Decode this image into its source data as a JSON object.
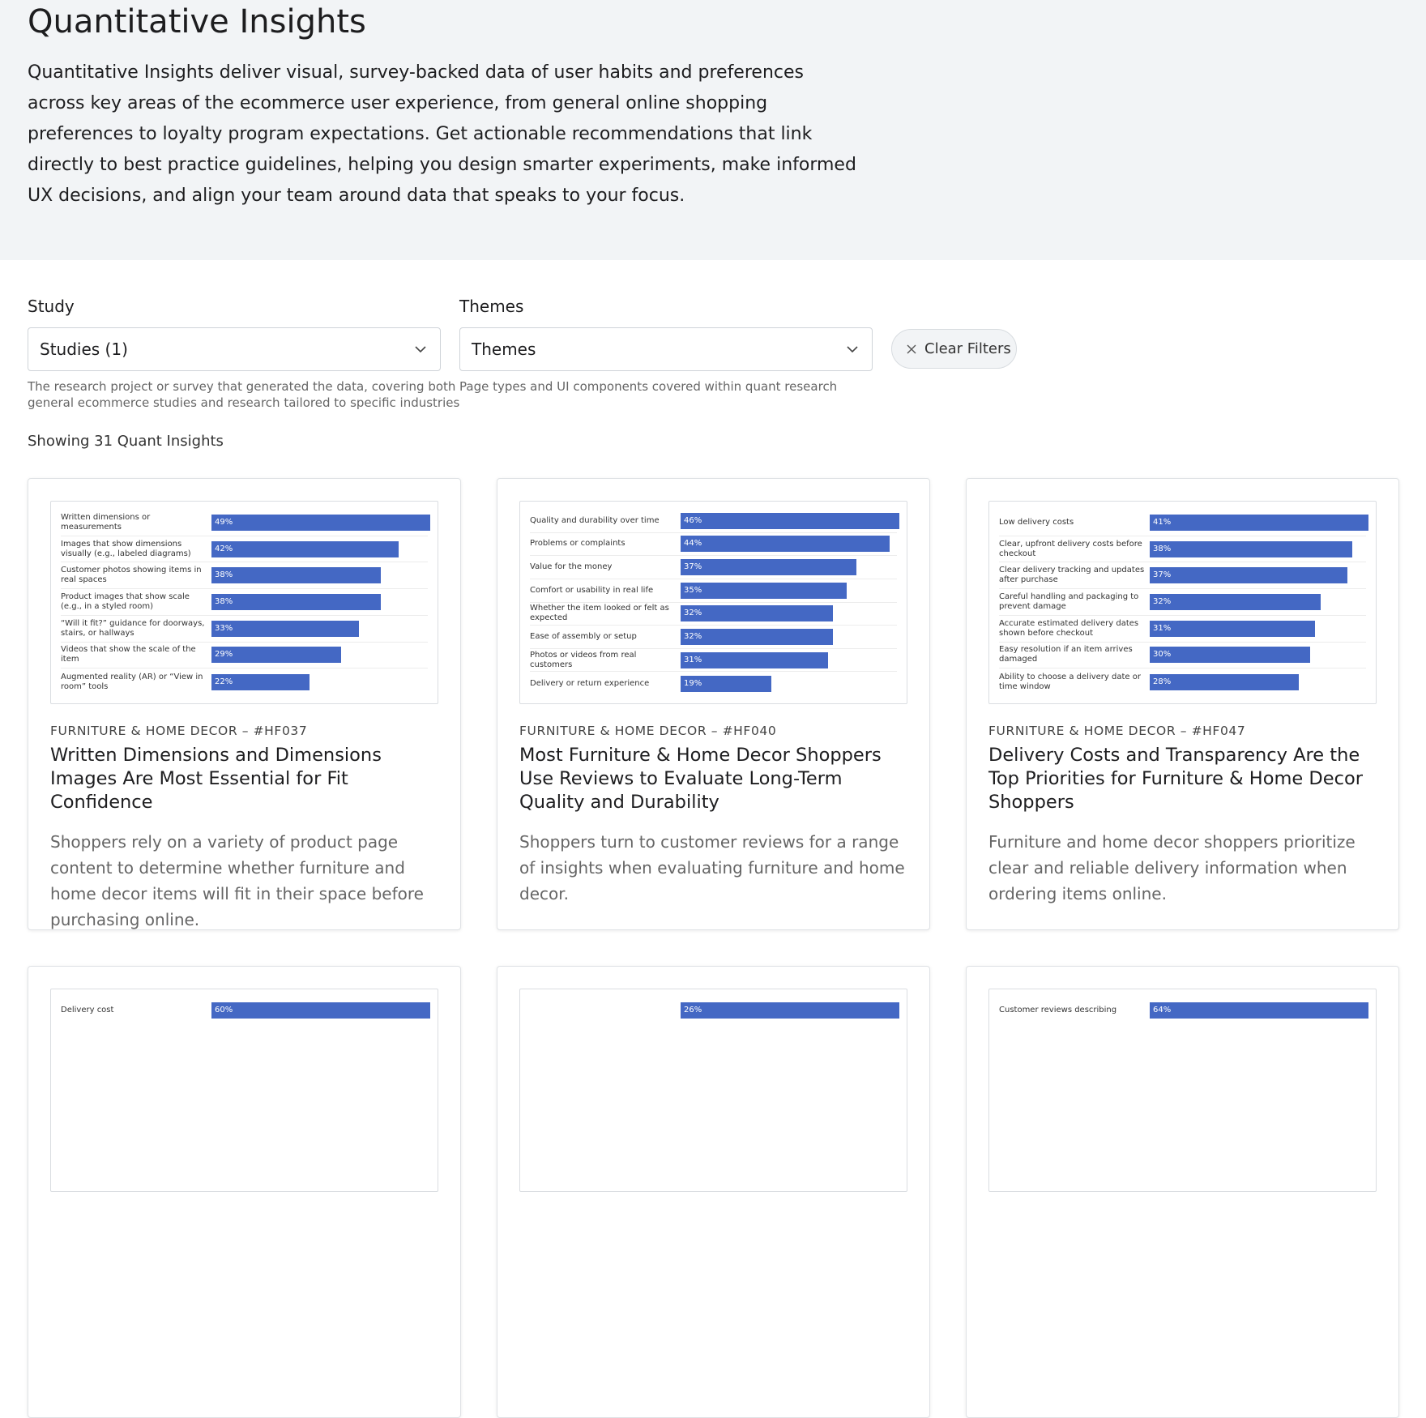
{
  "header": {
    "title": "Quantitative Insights",
    "description": "Quantitative Insights deliver visual, survey-backed data of user habits and preferences across key areas of the ecommerce user experience, from general online shopping preferences to loyalty program expectations. Get actionable recommendations that link directly to best practice guidelines, helping you design smarter experiments, make informed UX decisions, and align your team around data that speaks to your focus."
  },
  "filters": [
    {
      "label": "Study",
      "placeholder": "Studies (1)",
      "help": "The research project or survey that generated the data, covering both general ecommerce studies and research tailored to specific industries"
    },
    {
      "label": "Themes",
      "placeholder": "Themes",
      "help": "Page types and UI components covered within quant research"
    }
  ],
  "clear_filters": "Clear Filters",
  "results_count": "Showing 31 Quant Insights",
  "cards": [
    {
      "category": "FURNITURE & HOME DECOR – #HF037",
      "title": "Written Dimensions and Dimensions Images Are Most Essential for Fit Confidence",
      "description": "Shoppers rely on a variety of product page content to determine whether furniture and home decor items will fit in their space before purchasing online.",
      "chart_data": {
        "type": "bar",
        "orientation": "horizontal",
        "color": "#4468c4",
        "categories": [
          "Written dimensions or measurements",
          "Images that show dimensions visually (e.g., labeled diagrams)",
          "Customer photos showing items in real spaces",
          "Product images that show scale (e.g., in a styled room)",
          "“Will it fit?” guidance for doorways, stairs, or hallways",
          "Videos that show the scale of the item",
          "Augmented reality (AR) or “View in room” tools"
        ],
        "values": [
          49,
          42,
          38,
          38,
          33,
          29,
          22
        ],
        "value_labels": [
          "49%",
          "42%",
          "38%",
          "38%",
          "33%",
          "29%",
          "22%"
        ]
      }
    },
    {
      "category": "FURNITURE & HOME DECOR – #HF040",
      "title": "Most Furniture & Home Decor Shoppers Use Reviews to Evaluate Long-Term Quality and Durability",
      "description": "Shoppers turn to customer reviews for a range of insights when evaluating furniture and home decor.",
      "chart_data": {
        "type": "bar",
        "orientation": "horizontal",
        "color": "#4468c4",
        "categories": [
          "Quality and durability over time",
          "Problems or complaints",
          "Value for the money",
          "Comfort or usability in real life",
          "Whether the item looked or felt as expected",
          "Ease of assembly or setup",
          "Photos or videos from real customers",
          "Delivery or return experience"
        ],
        "values": [
          46,
          44,
          37,
          35,
          32,
          32,
          31,
          19
        ],
        "value_labels": [
          "46%",
          "44%",
          "37%",
          "35%",
          "32%",
          "32%",
          "31%",
          "19%"
        ]
      }
    },
    {
      "category": "FURNITURE & HOME DECOR – #HF047",
      "title": "Delivery Costs and Transparency Are the Top Priorities for Furniture & Home Decor Shoppers",
      "description": "Furniture and home decor shoppers prioritize clear and reliable delivery information when ordering items online.",
      "chart_data": {
        "type": "bar",
        "orientation": "horizontal",
        "color": "#4468c4",
        "categories": [
          "Low delivery costs",
          "Clear, upfront delivery costs before checkout",
          "Clear delivery tracking and updates after purchase",
          "Careful handling and packaging to prevent damage",
          "Accurate estimated delivery dates shown before checkout",
          "Easy resolution if an item arrives damaged",
          "Ability to choose a delivery date or time window"
        ],
        "values": [
          41,
          38,
          37,
          32,
          31,
          30,
          28
        ],
        "value_labels": [
          "41%",
          "38%",
          "37%",
          "32%",
          "31%",
          "30%",
          "28%"
        ]
      }
    },
    {
      "chart_data": {
        "type": "bar",
        "orientation": "horizontal",
        "color": "#4468c4",
        "categories": [
          "Delivery cost"
        ],
        "values": [
          60
        ],
        "value_labels": [
          "60%"
        ]
      }
    },
    {
      "chart_data": {
        "type": "bar",
        "orientation": "horizontal",
        "color": "#4468c4",
        "categories": [
          null
        ],
        "values": [
          26
        ],
        "value_labels": [
          "26%"
        ]
      }
    },
    {
      "chart_data": {
        "type": "bar",
        "orientation": "horizontal",
        "color": "#4468c4",
        "categories": [
          "Customer reviews describing"
        ],
        "values": [
          64
        ],
        "value_labels": [
          "64%"
        ]
      }
    }
  ]
}
